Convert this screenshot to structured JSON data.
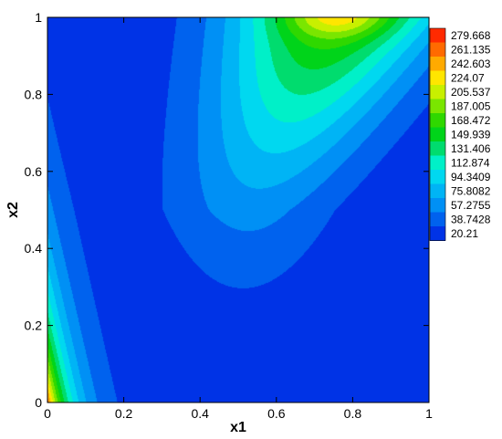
{
  "chart_data": {
    "type": "heatmap",
    "subtype": "filled-contour",
    "title": "",
    "xlabel": "x1",
    "ylabel": "x2",
    "xlim": [
      0,
      1
    ],
    "ylim": [
      0,
      1
    ],
    "x_ticks": [
      "0",
      "0.2",
      "0.4",
      "0.6",
      "0.8",
      "1"
    ],
    "y_ticks": [
      "0",
      "0.2",
      "0.4",
      "0.6",
      "0.8",
      "1"
    ],
    "grid": false,
    "legend_position": "right",
    "colorbar": {
      "levels": [
        "279.668",
        "261.135",
        "242.603",
        "224.07",
        "205.537",
        "187.005",
        "168.472",
        "149.939",
        "131.406",
        "112.874",
        "94.3409",
        "75.8082",
        "57.2755",
        "38.7428",
        "20.21"
      ],
      "colors": [
        "#ff2a00",
        "#ff6a00",
        "#ffaa00",
        "#ffe600",
        "#c8f000",
        "#7ae600",
        "#2fd800",
        "#00d41a",
        "#00dc6e",
        "#00f0c8",
        "#00d8f0",
        "#00b4f5",
        "#0090f5",
        "#0062ee",
        "#0033e6"
      ]
    }
  }
}
